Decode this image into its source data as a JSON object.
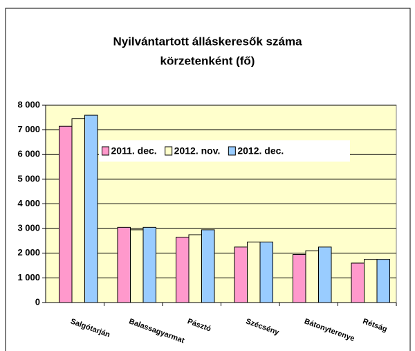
{
  "chart_data": {
    "type": "bar",
    "title": [
      "Nyilvántartott álláskeresők száma",
      "körzetenként (fő)"
    ],
    "categories": [
      "Salgótarján",
      "Balassagyarmat",
      "Pásztó",
      "Szécsény",
      "Bátonyterenye",
      "Rétság"
    ],
    "series": [
      {
        "name": "2011. dec.",
        "color": "#ff99cc",
        "values": [
          7150,
          3050,
          2650,
          2250,
          1950,
          1600
        ]
      },
      {
        "name": "2012. nov.",
        "color": "#ffffcc",
        "values": [
          7450,
          2950,
          2750,
          2450,
          2100,
          1750
        ]
      },
      {
        "name": "2012. dec.",
        "color": "#99ccff",
        "values": [
          7600,
          3050,
          2950,
          2450,
          2250,
          1750
        ]
      }
    ],
    "ylim": [
      0,
      8000
    ],
    "yticks": [
      0,
      {
        "value": 1000,
        "label": "1 000"
      },
      {
        "value": 2000,
        "label": "2 000"
      },
      {
        "value": 3000,
        "label": "3 000"
      },
      {
        "value": 4000,
        "label": "4 000"
      },
      {
        "value": 5000,
        "label": "5 000"
      },
      {
        "value": 6000,
        "label": "6 000"
      },
      {
        "value": 7000,
        "label": "7 000"
      },
      {
        "value": 8000,
        "label": "8 000"
      }
    ],
    "grid": true,
    "legend": "upper center"
  }
}
